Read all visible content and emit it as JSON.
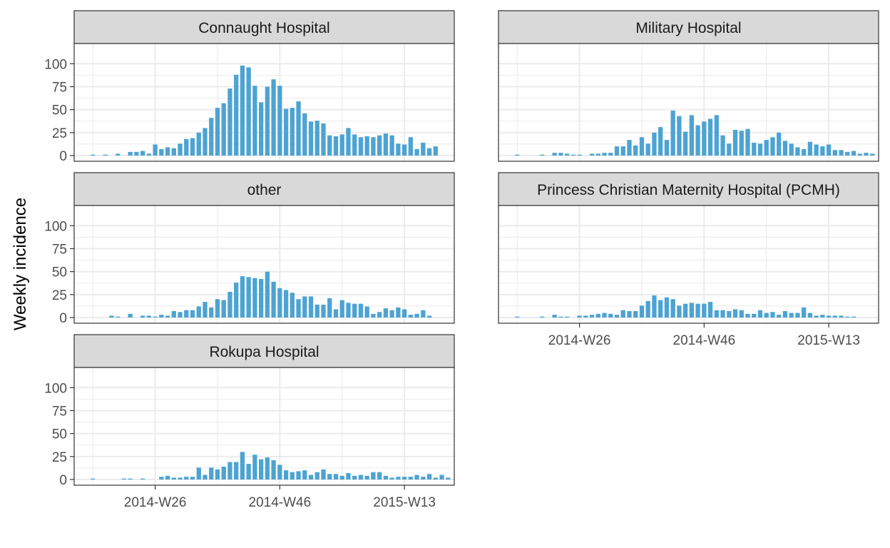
{
  "chart_data": {
    "type": "bar",
    "layout": "faceted",
    "ylabel": "Weekly incidence",
    "xlabel": "",
    "ylim": [
      0,
      100
    ],
    "yticks": [
      0,
      25,
      50,
      75,
      100
    ],
    "xlim": [
      -3,
      58
    ],
    "x_tick_labels": [
      {
        "x": 10,
        "label": "2014-W26"
      },
      {
        "x": 30,
        "label": "2014-W46"
      },
      {
        "x": 50,
        "label": "2015-W13"
      }
    ],
    "bar_color": "#4da3d2",
    "panel_strip_fill": "#d9d9d9",
    "grid_color": "#ebebeb",
    "panels": [
      {
        "name": "Connaught Hospital",
        "values": [
          1,
          0,
          1,
          0,
          2,
          0,
          4,
          4,
          5,
          2,
          12,
          7,
          9,
          8,
          13,
          18,
          19,
          25,
          30,
          41,
          52,
          57,
          73,
          88,
          98,
          96,
          76,
          58,
          75,
          83,
          76,
          51,
          52,
          59,
          46,
          37,
          38,
          35,
          22,
          21,
          23,
          30,
          23,
          20,
          21,
          20,
          22,
          24,
          22,
          13,
          12,
          20,
          7,
          14,
          8,
          10,
          0
        ]
      },
      {
        "name": "Military Hospital",
        "values": [
          1,
          0,
          0,
          0,
          1,
          0,
          3,
          3,
          2,
          1,
          1,
          0,
          2,
          2,
          3,
          3,
          10,
          10,
          17,
          11,
          20,
          13,
          25,
          31,
          17,
          49,
          43,
          26,
          44,
          33,
          37,
          40,
          44,
          22,
          13,
          28,
          27,
          29,
          14,
          13,
          17,
          20,
          25,
          16,
          13,
          9,
          7,
          15,
          12,
          10,
          12,
          6,
          6,
          4,
          5,
          2,
          3,
          2,
          0
        ]
      },
      {
        "name": "other",
        "values": [
          0,
          0,
          0,
          2,
          1,
          0,
          4,
          0,
          2,
          2,
          1,
          3,
          2,
          7,
          6,
          8,
          8,
          12,
          17,
          11,
          20,
          19,
          28,
          38,
          45,
          44,
          43,
          42,
          50,
          39,
          32,
          30,
          27,
          20,
          23,
          23,
          14,
          14,
          21,
          9,
          19,
          16,
          15,
          15,
          12,
          4,
          6,
          10,
          8,
          11,
          9,
          3,
          4,
          8,
          2,
          0
        ]
      },
      {
        "name": "Princess Christian Maternity Hospital (PCMH)",
        "values": [
          1,
          0,
          0,
          0,
          1,
          0,
          3,
          1,
          1,
          0,
          2,
          2,
          3,
          4,
          5,
          4,
          3,
          8,
          7,
          7,
          13,
          18,
          24,
          19,
          22,
          20,
          13,
          15,
          16,
          15,
          15,
          17,
          8,
          8,
          7,
          9,
          8,
          4,
          4,
          8,
          5,
          6,
          3,
          7,
          5,
          5,
          11,
          5,
          2,
          3,
          2,
          2,
          2,
          1,
          1
        ]
      },
      {
        "name": "Rokupa Hospital",
        "values": [
          1,
          0,
          0,
          0,
          0,
          1,
          1,
          0,
          1,
          0,
          0,
          3,
          4,
          2,
          2,
          3,
          3,
          13,
          5,
          13,
          11,
          14,
          19,
          19,
          30,
          17,
          27,
          22,
          24,
          21,
          16,
          10,
          8,
          9,
          10,
          5,
          8,
          11,
          6,
          6,
          4,
          7,
          4,
          5,
          4,
          8,
          8,
          4,
          2,
          3,
          3,
          3,
          5,
          3,
          6,
          2,
          5,
          2
        ]
      }
    ]
  }
}
